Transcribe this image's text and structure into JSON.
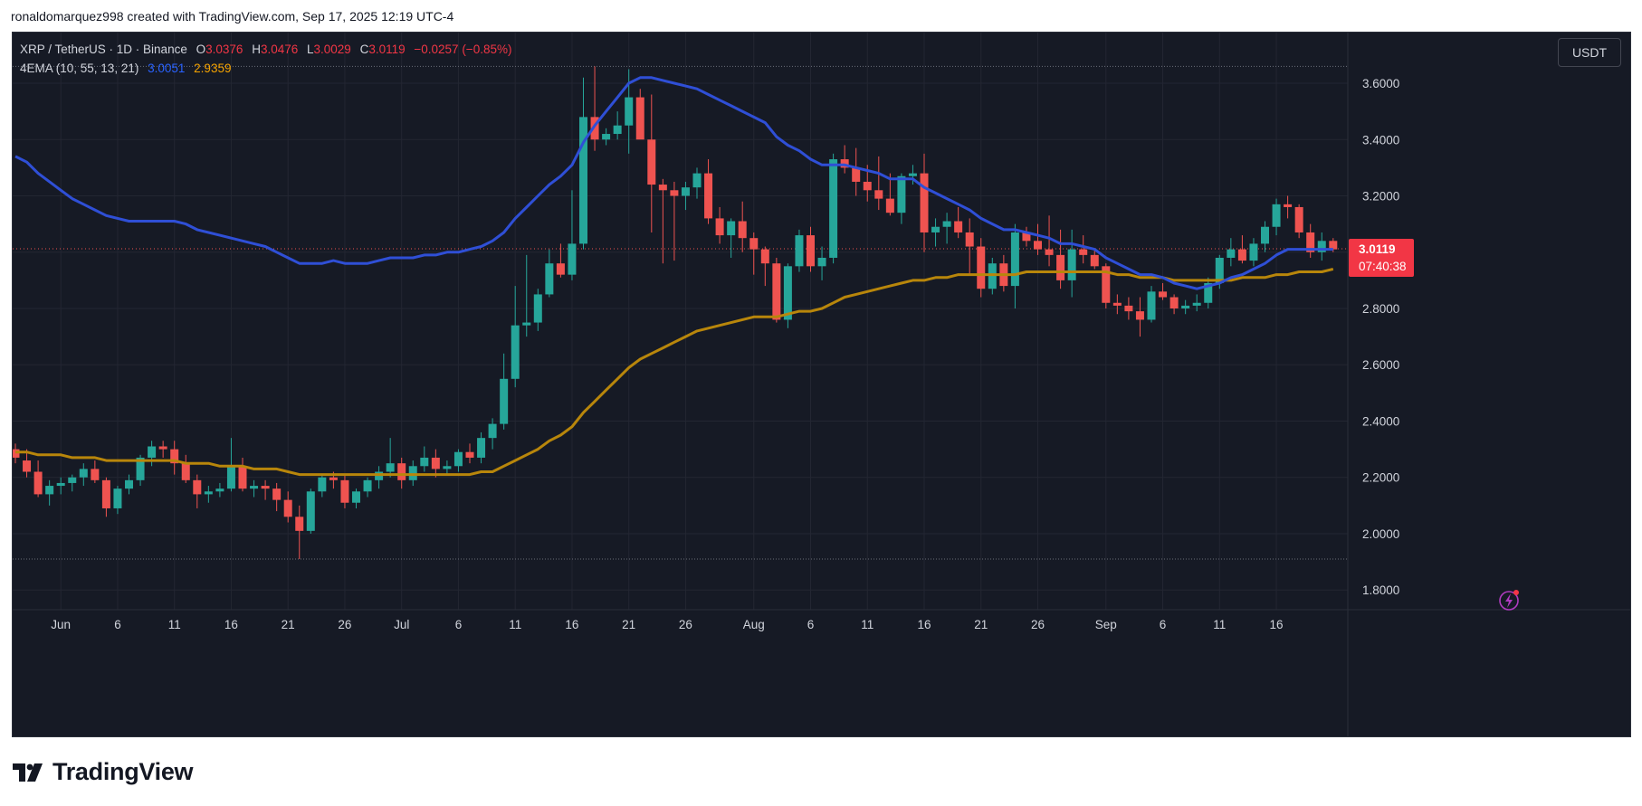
{
  "header": {
    "attribution": "ronaldomarquez998 created with TradingView.com, Sep 17, 2025 12:19 UTC-4"
  },
  "legend": {
    "symbol": "XRP / TetherUS · 1D · Binance",
    "o_label": "O",
    "o": "3.0376",
    "h_label": "H",
    "h": "3.0476",
    "l_label": "L",
    "l": "3.0029",
    "c_label": "C",
    "c": "3.0119",
    "change": "−0.0257 (−0.85%)",
    "indicator": "4EMA (10, 55, 13, 21)",
    "ema_fast": "3.0051",
    "ema_slow": "2.9359"
  },
  "currency_button": "USDT",
  "price_label": {
    "price": "3.0119",
    "countdown": "07:40:38"
  },
  "brand": "TradingView",
  "colors": {
    "background": "#161a25",
    "up": "#26a69a",
    "down": "#ef5350",
    "ema_fast": "#2f4fd6",
    "ema_slow": "#b8860b",
    "grid": "#232632"
  },
  "chart_data": {
    "type": "candlestick",
    "ylim": [
      1.73,
      3.78
    ],
    "y_ticks": [
      "3.6000",
      "3.4000",
      "3.2000",
      "3.0000",
      "2.8000",
      "2.6000",
      "2.4000",
      "2.2000",
      "2.0000",
      "1.8000"
    ],
    "y_tick_values": [
      3.6,
      3.4,
      3.2,
      3.0,
      2.8,
      2.6,
      2.4,
      2.2,
      2.0,
      1.8
    ],
    "x_ticks": [
      {
        "label": "Jun",
        "index": 4
      },
      {
        "label": "6",
        "index": 9
      },
      {
        "label": "11",
        "index": 14
      },
      {
        "label": "16",
        "index": 19
      },
      {
        "label": "21",
        "index": 24
      },
      {
        "label": "26",
        "index": 29
      },
      {
        "label": "Jul",
        "index": 34
      },
      {
        "label": "6",
        "index": 39
      },
      {
        "label": "11",
        "index": 44
      },
      {
        "label": "16",
        "index": 49
      },
      {
        "label": "21",
        "index": 54
      },
      {
        "label": "26",
        "index": 59
      },
      {
        "label": "Aug",
        "index": 65
      },
      {
        "label": "6",
        "index": 70
      },
      {
        "label": "11",
        "index": 75
      },
      {
        "label": "16",
        "index": 80
      },
      {
        "label": "21",
        "index": 85
      },
      {
        "label": "26",
        "index": 90
      },
      {
        "label": "Sep",
        "index": 96
      },
      {
        "label": "6",
        "index": 101
      },
      {
        "label": "11",
        "index": 106
      },
      {
        "label": "16",
        "index": 111
      }
    ],
    "dotted_high": 3.66,
    "dotted_low": 1.91,
    "current_price": 3.0119,
    "candles": [
      [
        2.3,
        2.32,
        2.25,
        2.27
      ],
      [
        2.26,
        2.3,
        2.2,
        2.22
      ],
      [
        2.22,
        2.26,
        2.13,
        2.14
      ],
      [
        2.14,
        2.19,
        2.1,
        2.17
      ],
      [
        2.17,
        2.2,
        2.14,
        2.18
      ],
      [
        2.18,
        2.21,
        2.15,
        2.2
      ],
      [
        2.2,
        2.25,
        2.17,
        2.23
      ],
      [
        2.23,
        2.26,
        2.18,
        2.19
      ],
      [
        2.19,
        2.2,
        2.06,
        2.09
      ],
      [
        2.09,
        2.17,
        2.07,
        2.16
      ],
      [
        2.16,
        2.21,
        2.14,
        2.19
      ],
      [
        2.19,
        2.28,
        2.17,
        2.27
      ],
      [
        2.27,
        2.33,
        2.24,
        2.31
      ],
      [
        2.31,
        2.33,
        2.27,
        2.3
      ],
      [
        2.3,
        2.33,
        2.21,
        2.25
      ],
      [
        2.25,
        2.28,
        2.18,
        2.19
      ],
      [
        2.19,
        2.21,
        2.09,
        2.14
      ],
      [
        2.14,
        2.17,
        2.11,
        2.15
      ],
      [
        2.15,
        2.18,
        2.13,
        2.16
      ],
      [
        2.16,
        2.34,
        2.15,
        2.24
      ],
      [
        2.24,
        2.27,
        2.15,
        2.16
      ],
      [
        2.16,
        2.19,
        2.13,
        2.17
      ],
      [
        2.17,
        2.19,
        2.12,
        2.16
      ],
      [
        2.16,
        2.18,
        2.08,
        2.12
      ],
      [
        2.12,
        2.15,
        2.04,
        2.06
      ],
      [
        2.06,
        2.1,
        1.91,
        2.01
      ],
      [
        2.01,
        2.16,
        2.0,
        2.15
      ],
      [
        2.15,
        2.21,
        2.13,
        2.2
      ],
      [
        2.2,
        2.22,
        2.16,
        2.19
      ],
      [
        2.19,
        2.21,
        2.09,
        2.11
      ],
      [
        2.11,
        2.16,
        2.09,
        2.15
      ],
      [
        2.15,
        2.2,
        2.13,
        2.19
      ],
      [
        2.19,
        2.24,
        2.16,
        2.22
      ],
      [
        2.22,
        2.34,
        2.2,
        2.25
      ],
      [
        2.25,
        2.27,
        2.16,
        2.19
      ],
      [
        2.19,
        2.26,
        2.17,
        2.24
      ],
      [
        2.24,
        2.31,
        2.22,
        2.27
      ],
      [
        2.27,
        2.3,
        2.2,
        2.23
      ],
      [
        2.23,
        2.26,
        2.21,
        2.24
      ],
      [
        2.24,
        2.3,
        2.22,
        2.29
      ],
      [
        2.29,
        2.32,
        2.25,
        2.27
      ],
      [
        2.27,
        2.36,
        2.25,
        2.34
      ],
      [
        2.34,
        2.41,
        2.3,
        2.39
      ],
      [
        2.39,
        2.64,
        2.37,
        2.55
      ],
      [
        2.55,
        2.88,
        2.52,
        2.74
      ],
      [
        2.74,
        2.99,
        2.7,
        2.75
      ],
      [
        2.75,
        2.87,
        2.72,
        2.85
      ],
      [
        2.85,
        3.01,
        2.84,
        2.96
      ],
      [
        2.96,
        3.03,
        2.91,
        2.92
      ],
      [
        2.92,
        3.22,
        2.9,
        3.03
      ],
      [
        3.03,
        3.62,
        3.01,
        3.48
      ],
      [
        3.48,
        3.66,
        3.36,
        3.4
      ],
      [
        3.4,
        3.44,
        3.38,
        3.42
      ],
      [
        3.42,
        3.5,
        3.4,
        3.45
      ],
      [
        3.45,
        3.65,
        3.35,
        3.55
      ],
      [
        3.55,
        3.58,
        3.41,
        3.4
      ],
      [
        3.4,
        3.56,
        3.07,
        3.24
      ],
      [
        3.24,
        3.26,
        2.96,
        3.22
      ],
      [
        3.22,
        3.25,
        2.97,
        3.2
      ],
      [
        3.2,
        3.25,
        3.15,
        3.23
      ],
      [
        3.23,
        3.3,
        3.19,
        3.28
      ],
      [
        3.28,
        3.33,
        3.1,
        3.12
      ],
      [
        3.12,
        3.16,
        3.03,
        3.06
      ],
      [
        3.06,
        3.12,
        2.98,
        3.11
      ],
      [
        3.11,
        3.18,
        3.0,
        3.05
      ],
      [
        3.05,
        3.07,
        2.92,
        3.01
      ],
      [
        3.01,
        3.02,
        2.88,
        2.96
      ],
      [
        2.96,
        2.98,
        2.75,
        2.76
      ],
      [
        2.76,
        2.96,
        2.73,
        2.95
      ],
      [
        2.95,
        3.08,
        2.93,
        3.06
      ],
      [
        3.06,
        3.09,
        2.93,
        2.95
      ],
      [
        2.95,
        3.02,
        2.9,
        2.98
      ],
      [
        2.98,
        3.35,
        2.96,
        3.33
      ],
      [
        3.33,
        3.38,
        3.28,
        3.3
      ],
      [
        3.3,
        3.37,
        3.2,
        3.25
      ],
      [
        3.25,
        3.31,
        3.18,
        3.22
      ],
      [
        3.22,
        3.34,
        3.15,
        3.19
      ],
      [
        3.19,
        3.28,
        3.13,
        3.14
      ],
      [
        3.14,
        3.28,
        3.1,
        3.27
      ],
      [
        3.27,
        3.31,
        3.24,
        3.28
      ],
      [
        3.28,
        3.35,
        3.0,
        3.07
      ],
      [
        3.07,
        3.12,
        3.02,
        3.09
      ],
      [
        3.09,
        3.14,
        3.03,
        3.11
      ],
      [
        3.11,
        3.16,
        3.05,
        3.07
      ],
      [
        3.07,
        3.12,
        2.92,
        3.02
      ],
      [
        3.02,
        3.05,
        2.84,
        2.87
      ],
      [
        2.87,
        2.98,
        2.85,
        2.96
      ],
      [
        2.96,
        2.99,
        2.86,
        2.88
      ],
      [
        2.88,
        3.1,
        2.8,
        3.07
      ],
      [
        3.07,
        3.09,
        3.02,
        3.04
      ],
      [
        3.04,
        3.1,
        2.99,
        3.01
      ],
      [
        3.01,
        3.13,
        2.95,
        2.99
      ],
      [
        2.99,
        3.08,
        2.87,
        2.9
      ],
      [
        2.9,
        3.08,
        2.84,
        3.01
      ],
      [
        3.01,
        3.06,
        2.96,
        2.99
      ],
      [
        2.99,
        3.01,
        2.94,
        2.95
      ],
      [
        2.95,
        2.96,
        2.8,
        2.82
      ],
      [
        2.82,
        2.85,
        2.78,
        2.81
      ],
      [
        2.81,
        2.84,
        2.76,
        2.79
      ],
      [
        2.79,
        2.84,
        2.7,
        2.76
      ],
      [
        2.76,
        2.88,
        2.75,
        2.86
      ],
      [
        2.86,
        2.89,
        2.83,
        2.84
      ],
      [
        2.84,
        2.85,
        2.78,
        2.8
      ],
      [
        2.8,
        2.83,
        2.78,
        2.81
      ],
      [
        2.81,
        2.85,
        2.79,
        2.82
      ],
      [
        2.82,
        2.91,
        2.8,
        2.89
      ],
      [
        2.89,
        2.99,
        2.87,
        2.98
      ],
      [
        2.98,
        3.05,
        2.95,
        3.01
      ],
      [
        3.01,
        3.06,
        2.96,
        2.97
      ],
      [
        2.97,
        3.05,
        2.95,
        3.03
      ],
      [
        3.03,
        3.11,
        3.0,
        3.09
      ],
      [
        3.09,
        3.19,
        3.06,
        3.17
      ],
      [
        3.17,
        3.2,
        3.12,
        3.16
      ],
      [
        3.16,
        3.17,
        3.05,
        3.07
      ],
      [
        3.07,
        3.1,
        2.98,
        3.0
      ],
      [
        3.0,
        3.07,
        2.97,
        3.04
      ],
      [
        3.04,
        3.05,
        3.0,
        3.01
      ]
    ],
    "ema_fast": [
      3.34,
      3.32,
      3.28,
      3.25,
      3.22,
      3.19,
      3.17,
      3.15,
      3.13,
      3.12,
      3.11,
      3.11,
      3.11,
      3.11,
      3.11,
      3.1,
      3.08,
      3.07,
      3.06,
      3.05,
      3.04,
      3.03,
      3.02,
      3.0,
      2.98,
      2.96,
      2.96,
      2.96,
      2.97,
      2.96,
      2.96,
      2.96,
      2.97,
      2.98,
      2.98,
      2.98,
      2.99,
      2.99,
      3.0,
      3.0,
      3.01,
      3.02,
      3.04,
      3.07,
      3.12,
      3.16,
      3.2,
      3.24,
      3.27,
      3.31,
      3.39,
      3.45,
      3.5,
      3.55,
      3.6,
      3.62,
      3.62,
      3.61,
      3.6,
      3.59,
      3.58,
      3.56,
      3.54,
      3.52,
      3.5,
      3.48,
      3.46,
      3.41,
      3.38,
      3.36,
      3.33,
      3.31,
      3.31,
      3.31,
      3.3,
      3.29,
      3.28,
      3.26,
      3.26,
      3.26,
      3.23,
      3.21,
      3.19,
      3.17,
      3.15,
      3.12,
      3.1,
      3.08,
      3.08,
      3.07,
      3.06,
      3.05,
      3.03,
      3.03,
      3.02,
      3.01,
      2.98,
      2.96,
      2.94,
      2.92,
      2.92,
      2.91,
      2.89,
      2.88,
      2.87,
      2.88,
      2.89,
      2.91,
      2.92,
      2.94,
      2.96,
      2.99,
      3.01,
      3.01,
      3.01,
      3.01,
      3.01
    ],
    "ema_slow": [
      2.29,
      2.29,
      2.28,
      2.28,
      2.28,
      2.27,
      2.27,
      2.27,
      2.26,
      2.26,
      2.26,
      2.26,
      2.26,
      2.26,
      2.26,
      2.25,
      2.25,
      2.25,
      2.24,
      2.24,
      2.24,
      2.23,
      2.23,
      2.23,
      2.22,
      2.21,
      2.21,
      2.21,
      2.21,
      2.21,
      2.21,
      2.21,
      2.21,
      2.21,
      2.21,
      2.21,
      2.21,
      2.21,
      2.21,
      2.21,
      2.21,
      2.22,
      2.22,
      2.24,
      2.26,
      2.28,
      2.3,
      2.33,
      2.35,
      2.38,
      2.43,
      2.47,
      2.51,
      2.55,
      2.59,
      2.62,
      2.64,
      2.66,
      2.68,
      2.7,
      2.72,
      2.73,
      2.74,
      2.75,
      2.76,
      2.77,
      2.77,
      2.77,
      2.78,
      2.79,
      2.79,
      2.8,
      2.82,
      2.84,
      2.85,
      2.86,
      2.87,
      2.88,
      2.89,
      2.9,
      2.9,
      2.91,
      2.91,
      2.92,
      2.92,
      2.92,
      2.92,
      2.92,
      2.92,
      2.93,
      2.93,
      2.93,
      2.93,
      2.93,
      2.93,
      2.93,
      2.93,
      2.92,
      2.92,
      2.91,
      2.91,
      2.91,
      2.9,
      2.9,
      2.9,
      2.9,
      2.9,
      2.9,
      2.91,
      2.91,
      2.91,
      2.92,
      2.92,
      2.93,
      2.93,
      2.93,
      2.94
    ]
  }
}
